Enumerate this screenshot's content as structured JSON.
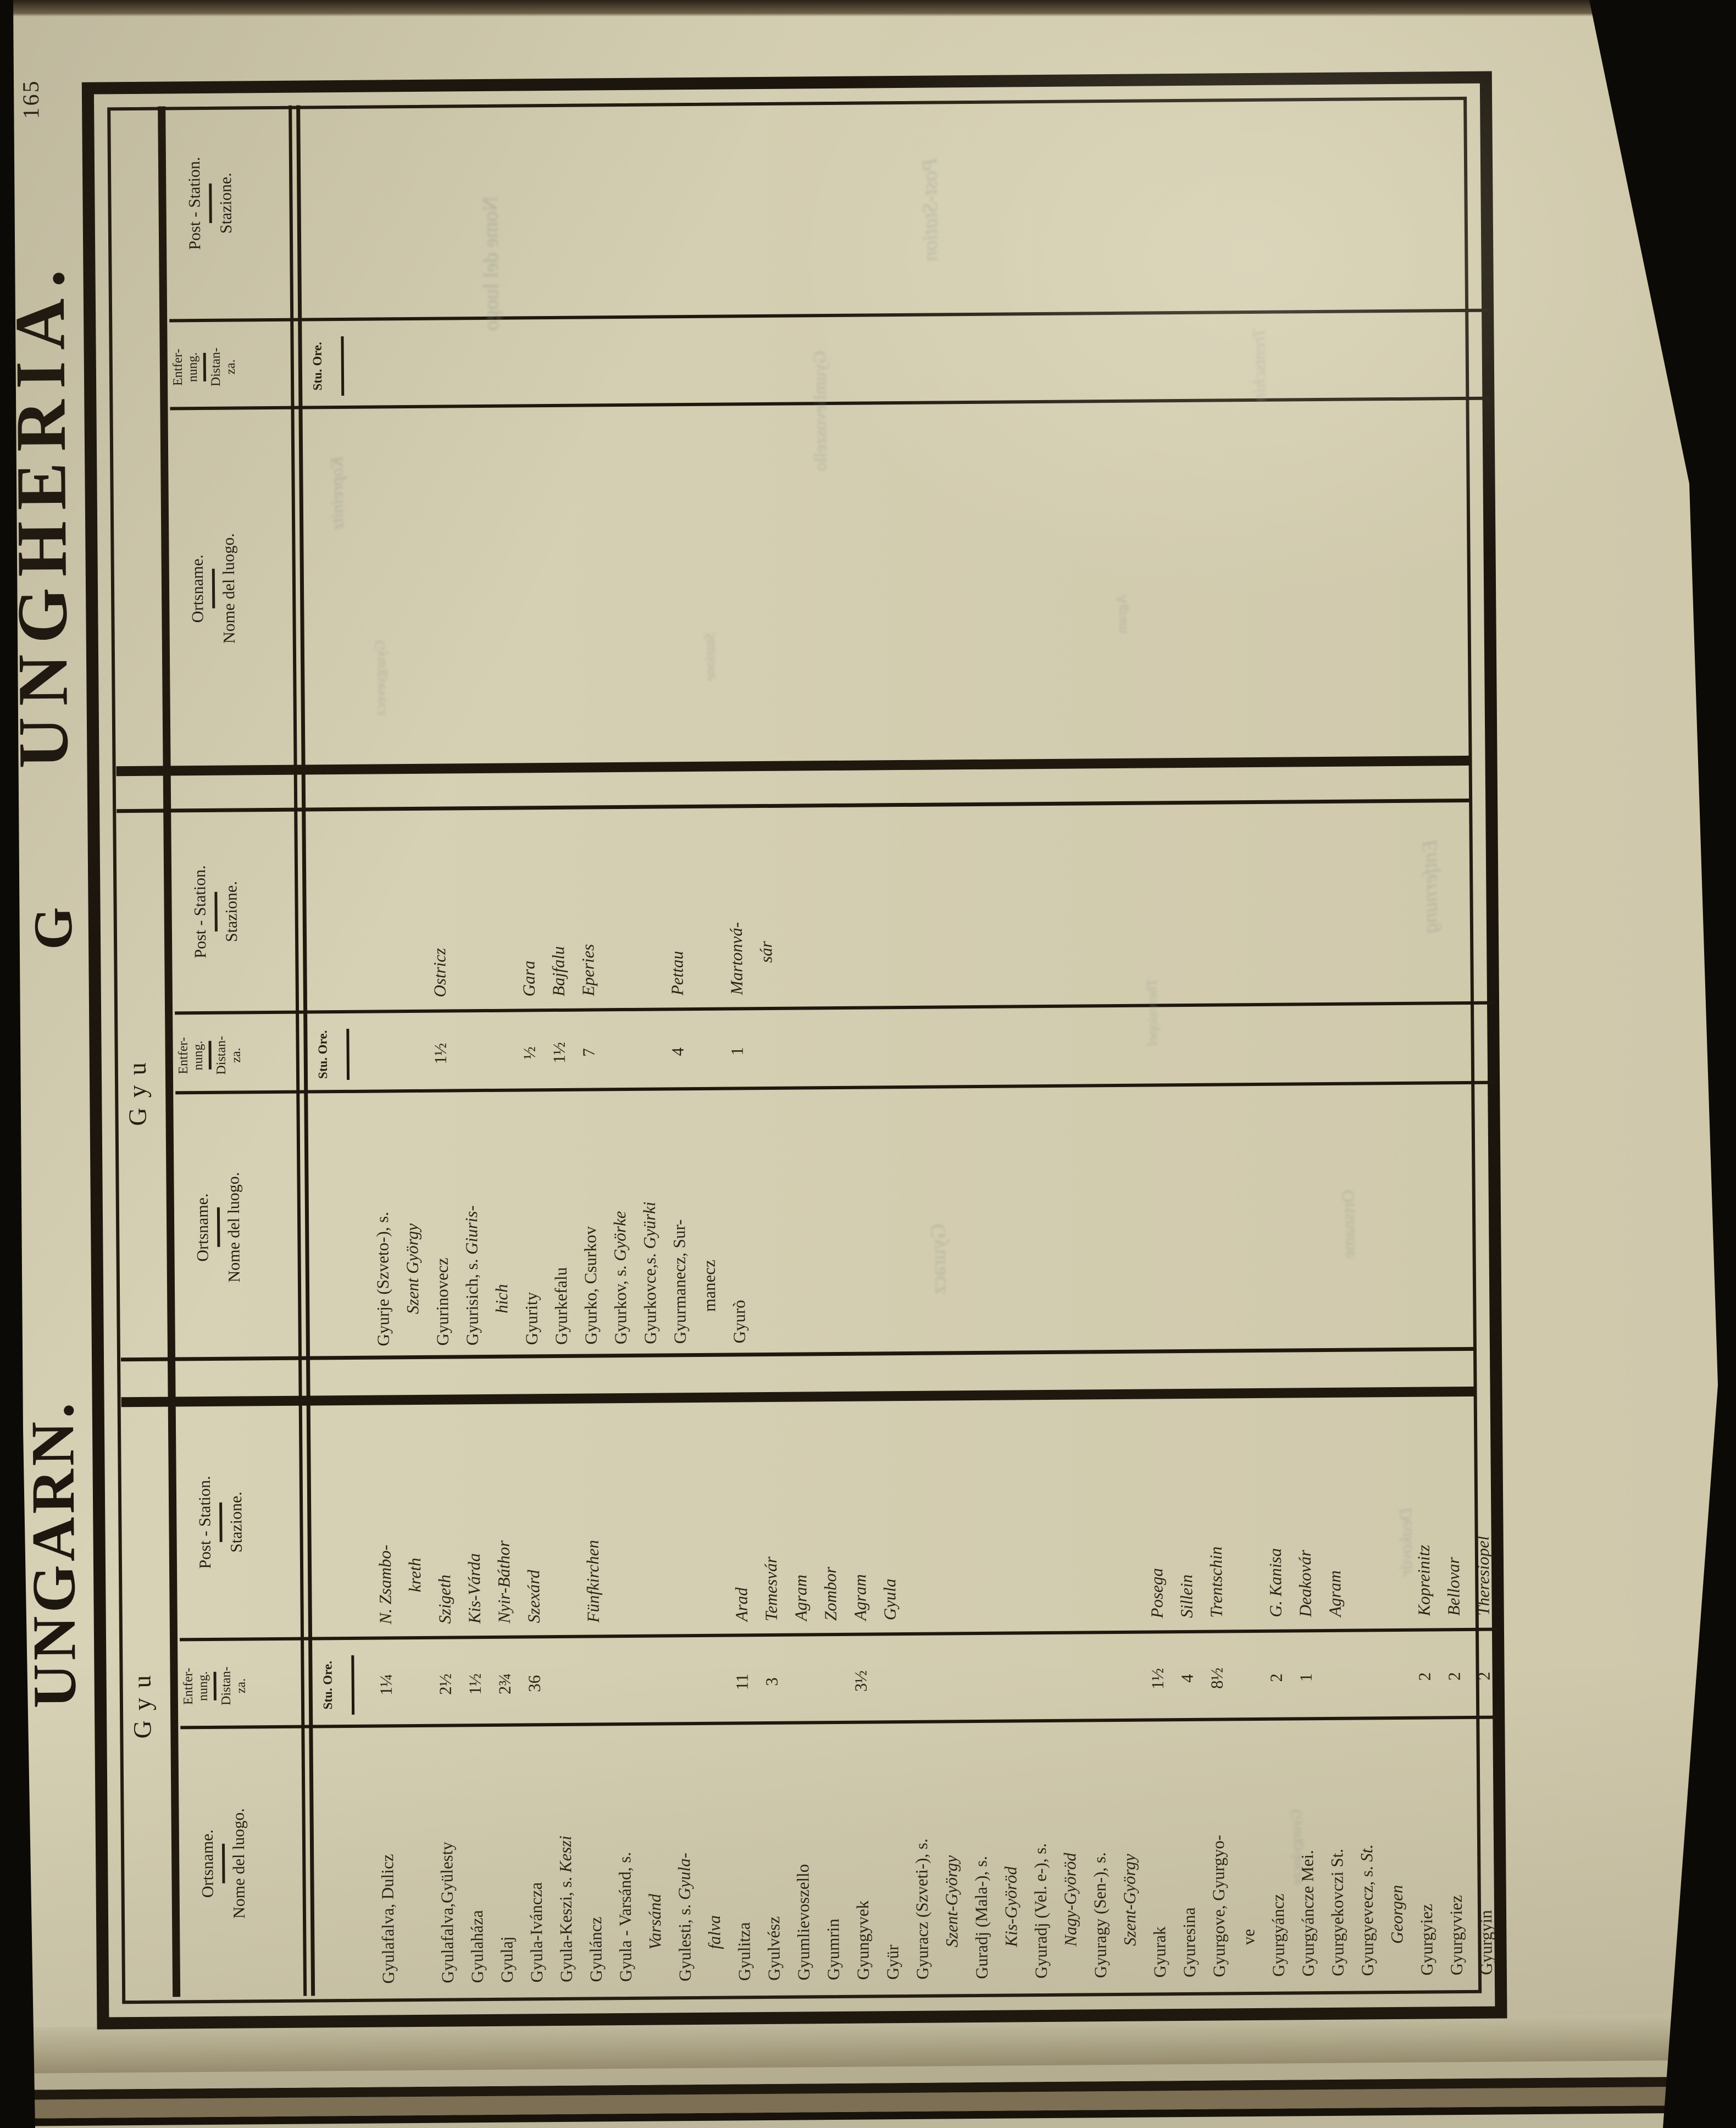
{
  "page": {
    "number": "165",
    "title_left": "UNGARN.",
    "title_center": "G",
    "title_right": "UNGHERIA.",
    "paper_color": "#d2ccb0",
    "ink_color": "#241d12"
  },
  "headers": {
    "name_de": "Ortsname.",
    "name_it": "Nome del luogo.",
    "dist_de_1": "Entfer-",
    "dist_de_2": "nung.",
    "dist_it_1": "Distan-",
    "dist_it_2": "za.",
    "unit": "Stu. Ore.",
    "station_de": "Post - Station.",
    "station_it": "Stazione."
  },
  "groups": [
    {
      "letter": "Gyu",
      "lines": [
        {
          "nr": "Gyulafalva, Dulicz",
          "d": "1¼",
          "s": "N. Zsambo-"
        },
        {
          "s": "kreth",
          "sind": 1
        },
        {
          "nr": "Gyulafalva,Gyülesty",
          "d": "2½",
          "s": "Szigeth"
        },
        {
          "nr": "Gyulaháza",
          "d": "1½",
          "s": "Kis-Várda"
        },
        {
          "nr": "Gyulaj",
          "d": "2¾",
          "s": "Nyir-Báthor"
        },
        {
          "nr": "Gyula-Iváncza",
          "d": "36",
          "s": "Szexárd"
        },
        {
          "nr": "Gyula-Keszi, s. ",
          "ni": "Keszi"
        },
        {
          "nr": "Gyuláncz",
          "s": "Fünfkirchen"
        },
        {
          "nr": "Gyula - Varsánd, s."
        },
        {
          "ni": "Varsánd",
          "ind": 1
        },
        {
          "nr": "Gyulesti, s. ",
          "ni": "Gyula-"
        },
        {
          "ni": "falva",
          "ind": 1
        },
        {
          "nr": "Gyulitza",
          "d": "11",
          "s": "Arad"
        },
        {
          "nr": "Gyulvész",
          "d": "3",
          "s": "Temesvár"
        },
        {
          "nr": "Gyumlievoszello",
          "s": "Agram"
        },
        {
          "nr": "Gyumrin",
          "s": "Zombor"
        },
        {
          "nr": "Gyungyvek",
          "d": "3½",
          "s": "Agram"
        },
        {
          "nr": "Gyür",
          "s": "Gyula"
        },
        {
          "nr": "Gyuracz (Szveti-), s."
        },
        {
          "ni": "Szent-György",
          "ind": 1
        },
        {
          "nr": "Guradj (Mala-), s."
        },
        {
          "ni": "Kis-Györöd",
          "ind": 1
        },
        {
          "nr": "Gyuradj (Vel. e-), s."
        },
        {
          "ni": "Nagy-Györöd",
          "ind": 1
        },
        {
          "nr": "Gyuragy (Sen-), s."
        },
        {
          "ni": "Szent-György",
          "ind": 1
        },
        {
          "nr": "Gyurak",
          "d": "1½",
          "s": "Posega"
        },
        {
          "nr": "Gyuresina",
          "d": "4",
          "s": "Sillein"
        },
        {
          "nr": "Gyurgove, Gyurgyo-",
          "d": "8½",
          "s": "Trentschin"
        },
        {
          "nr": "ve",
          "ind": 1
        },
        {
          "nr": "Gyurgyáncz",
          "d": "2",
          "s": "G. Kanisa"
        },
        {
          "nr": "Gyurgyáncze Mei.",
          "d": "1",
          "s": "Deakovár"
        },
        {
          "nr": "Gyurgyekovczi St.",
          "s": "Agram"
        },
        {
          "nr": "Gyurgyevecz, s. ",
          "ni": "St."
        },
        {
          "ni": "Georgen",
          "ind": 1
        },
        {
          "nr": "Gyurgyiez",
          "d": "2",
          "s": "Kopreinitz"
        },
        {
          "nr": "Gyurgyviez",
          "d": "2",
          "s": "Bellovar"
        },
        {
          "nr": "Gyurgyin",
          "d": "2",
          "s": "Theresiopel"
        }
      ]
    },
    {
      "letter": "Gyu",
      "lines": [
        {
          "nr": "Gyurje (Szveto-), s."
        },
        {
          "ni": "Szent György",
          "ind": 1
        },
        {
          "nr": "Gyurinovecz",
          "d": "1½",
          "s": "Ostricz"
        },
        {
          "nr": "Gyurisich, s. ",
          "ni": "Giuris-"
        },
        {
          "ni": "hich",
          "ind": 1
        },
        {
          "nr": "Gyurity",
          "d": "½",
          "s": "Gara"
        },
        {
          "nr": "Gyurkefalu",
          "d": "1½",
          "s": "Bajfalu"
        },
        {
          "nr": "Gyurko, Csurkov",
          "d": "7",
          "s": "Eperies"
        },
        {
          "nr": "Gyurkov, s. ",
          "ni": "Györke"
        },
        {
          "nr": "Gyurkovce,s. ",
          "ni": "Gyürki"
        },
        {
          "nr": "Gyurmanecz, Sur-",
          "d": "4",
          "s": "Pettau"
        },
        {
          "nr": "manecz",
          "ind": 1
        },
        {
          "nr": "Gyurò",
          "d": "1",
          "s": "Martonvá-"
        },
        {
          "s": "sár",
          "sind": 1
        }
      ]
    },
    {
      "letter": "",
      "lines": []
    }
  ],
  "ghosts": [
    "Gyurgyevecz",
    "Kopreinitz",
    "Nome del luogo",
    "Stazione",
    "Gyumlievoszello",
    "Post-Station",
    "Agram",
    "Trentschin",
    "Gyuracz",
    "Theresiopel",
    "Ortsname",
    "Entfernung",
    "Gyurgyáncze",
    "Deakovár"
  ]
}
